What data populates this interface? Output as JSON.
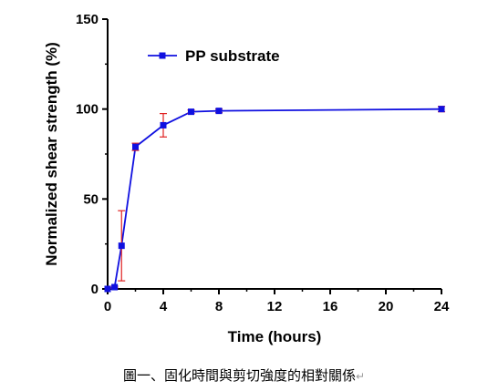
{
  "chart_data": {
    "type": "line",
    "xlabel": "Time (hours)",
    "ylabel": "Normalized shear strength (%)",
    "xlim": [
      0,
      24
    ],
    "ylim": [
      0,
      150
    ],
    "xticks": [
      0,
      4,
      8,
      12,
      16,
      20,
      24
    ],
    "yticks": [
      0,
      50,
      100,
      150
    ],
    "grid": false,
    "legend": "top-left",
    "series": [
      {
        "name": "PP substrate",
        "color": "#1010e0",
        "errorbar_color": "#e02020",
        "x": [
          0,
          0.5,
          1,
          2,
          4,
          6,
          8,
          24
        ],
        "y": [
          0,
          1,
          24,
          79,
          91,
          98.5,
          99,
          100
        ],
        "error": [
          0,
          0.5,
          19.5,
          2,
          6.5,
          1,
          1,
          1.5
        ]
      }
    ]
  },
  "caption": {
    "text": "圖一、固化時間與剪切強度的相對關係",
    "mark": "↵"
  }
}
